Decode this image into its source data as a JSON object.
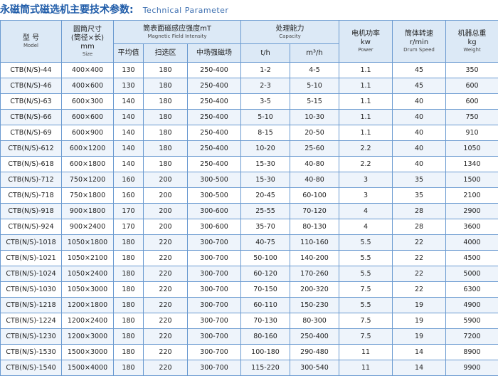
{
  "title": {
    "cn": "永磁筒式磁选机主要技术参数:",
    "en": "Technical Parameter"
  },
  "header": {
    "model": {
      "cn": "型 号",
      "en": "Model"
    },
    "size": {
      "cn1": "圆筒尺寸",
      "cn2": "(筒径×长)",
      "unit": "mm",
      "en": "Size"
    },
    "field": {
      "cn": "筒表面磁感应强度mT",
      "en": "Magnetic Field Intensity"
    },
    "field_sub": [
      "平均值",
      "扫选区",
      "中场强磁场"
    ],
    "capacity": {
      "cn": "处理能力",
      "en": "Capacity"
    },
    "capacity_sub": [
      "t/h",
      "m³/h"
    ],
    "power": {
      "cn": "电机功率",
      "unit": "kw",
      "en": "Power"
    },
    "speed": {
      "cn": "筒体转速",
      "unit": "r/min",
      "en": "Drum Speed"
    },
    "weight": {
      "cn": "机器总重",
      "unit": "kg",
      "en": "Weight"
    }
  },
  "rows": [
    [
      "CTB(N/S)-44",
      "400×400",
      "130",
      "180",
      "250-400",
      "1-2",
      "4-5",
      "1.1",
      "45",
      "350"
    ],
    [
      "CTB(N/S)-46",
      "400×600",
      "130",
      "180",
      "250-400",
      "2-3",
      "5-10",
      "1.1",
      "45",
      "600"
    ],
    [
      "CTB(N/S)-63",
      "600×300",
      "140",
      "180",
      "250-400",
      "3-5",
      "5-15",
      "1.1",
      "40",
      "600"
    ],
    [
      "CTB(N/S)-66",
      "600×600",
      "140",
      "180",
      "250-400",
      "5-10",
      "10-30",
      "1.1",
      "40",
      "750"
    ],
    [
      "CTB(N/S)-69",
      "600×900",
      "140",
      "180",
      "250-400",
      "8-15",
      "20-50",
      "1.1",
      "40",
      "910"
    ],
    [
      "CTB(N/S)-612",
      "600×1200",
      "140",
      "180",
      "250-400",
      "10-20",
      "25-60",
      "2.2",
      "40",
      "1050"
    ],
    [
      "CTB(N/S)-618",
      "600×1800",
      "140",
      "180",
      "250-400",
      "15-30",
      "40-80",
      "2.2",
      "40",
      "1340"
    ],
    [
      "CTB(N/S)-712",
      "750×1200",
      "160",
      "200",
      "300-500",
      "15-30",
      "40-80",
      "3",
      "35",
      "1500"
    ],
    [
      "CTB(N/S)-718",
      "750×1800",
      "160",
      "200",
      "300-500",
      "20-45",
      "60-100",
      "3",
      "35",
      "2100"
    ],
    [
      "CTB(N/S)-918",
      "900×1800",
      "170",
      "200",
      "300-600",
      "25-55",
      "70-120",
      "4",
      "28",
      "2900"
    ],
    [
      "CTB(N/S)-924",
      "900×2400",
      "170",
      "200",
      "300-600",
      "35-70",
      "80-130",
      "4",
      "28",
      "3600"
    ],
    [
      "CTB(N/S)-1018",
      "1050×1800",
      "180",
      "220",
      "300-700",
      "40-75",
      "110-160",
      "5.5",
      "22",
      "4000"
    ],
    [
      "CTB(N/S)-1021",
      "1050×2100",
      "180",
      "220",
      "300-700",
      "50-100",
      "140-200",
      "5.5",
      "22",
      "4500"
    ],
    [
      "CTB(N/S)-1024",
      "1050×2400",
      "180",
      "220",
      "300-700",
      "60-120",
      "170-260",
      "5.5",
      "22",
      "5000"
    ],
    [
      "CTB(N/S)-1030",
      "1050×3000",
      "180",
      "220",
      "300-700",
      "70-150",
      "200-320",
      "7.5",
      "22",
      "6300"
    ],
    [
      "CTB(N/S)-1218",
      "1200×1800",
      "180",
      "220",
      "300-700",
      "60-110",
      "150-230",
      "5.5",
      "19",
      "4900"
    ],
    [
      "CTB(N/S)-1224",
      "1200×2400",
      "180",
      "220",
      "300-700",
      "70-130",
      "80-300",
      "7.5",
      "19",
      "5900"
    ],
    [
      "CTB(N/S)-1230",
      "1200×3000",
      "180",
      "220",
      "300-700",
      "80-160",
      "250-400",
      "7.5",
      "19",
      "7200"
    ],
    [
      "CTB(N/S)-1530",
      "1500×3000",
      "180",
      "220",
      "300-700",
      "100-180",
      "290-480",
      "11",
      "14",
      "8900"
    ],
    [
      "CTB(N/S)-1540",
      "1500×4000",
      "180",
      "220",
      "300-700",
      "115-220",
      "300-540",
      "11",
      "14",
      "9900"
    ]
  ]
}
